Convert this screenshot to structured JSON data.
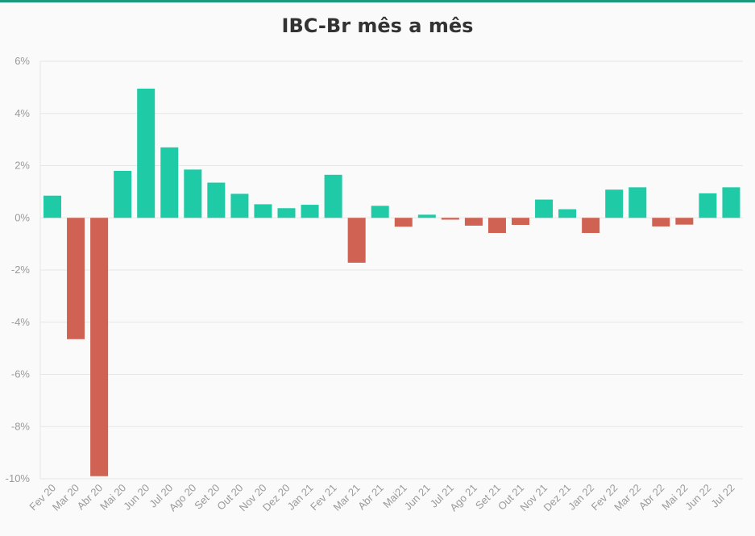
{
  "chart_data": {
    "type": "bar",
    "title": "IBC-Br mês a mês",
    "xlabel": "",
    "ylabel": "",
    "ylim": [
      -10,
      6
    ],
    "y_ticks": [
      6,
      4,
      2,
      0,
      -2,
      -4,
      -6,
      -8,
      -10
    ],
    "y_tick_labels": [
      "6%",
      "4%",
      "2%",
      "0%",
      "-2%",
      "-4%",
      "-6%",
      "-8%",
      "-10%"
    ],
    "grid": true,
    "colors": {
      "positive": "#1ecba6",
      "negative": "#cf6252",
      "accent": "#1a9a7a"
    },
    "categories": [
      "Fev 20",
      "Mar 20",
      "Abr 20",
      "Mai 20",
      "Jun 20",
      "Jul 20",
      "Ago 20",
      "Set 20",
      "Out 20",
      "Nov 20",
      "Dez 20",
      "Jan 21",
      "Fev 21",
      "Mar 21",
      "Abr 21",
      "Mai21",
      "Jun 21",
      "Jul 21",
      "Ago 21",
      "Set 21",
      "Out 21",
      "Nov 21",
      "Dez 21",
      "Jan 22",
      "Fev 22",
      "Mar 22",
      "Abr 22",
      "Mai 22",
      "Jun 22",
      "Jul 22"
    ],
    "values": [
      0.85,
      -4.65,
      -9.9,
      1.8,
      4.95,
      2.7,
      1.85,
      1.35,
      0.92,
      0.52,
      0.37,
      0.5,
      1.65,
      -1.72,
      0.46,
      -0.34,
      0.12,
      -0.07,
      -0.3,
      -0.58,
      -0.27,
      0.7,
      0.33,
      -0.58,
      1.08,
      1.17,
      -0.33,
      -0.26,
      0.94,
      1.17
    ]
  }
}
